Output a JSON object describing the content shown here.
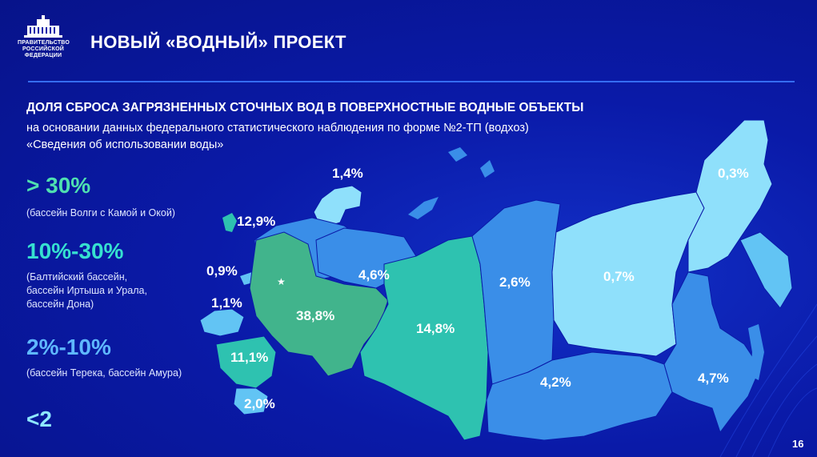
{
  "header": {
    "org_name": [
      "ПРАВИТЕЛЬСТВО",
      "РОССИЙСКОЙ",
      "ФЕДЕРАЦИИ"
    ],
    "title": "НОВЫЙ «ВОДНЫЙ» ПРОЕКТ"
  },
  "subtitle": "ДОЛЯ СБРОСА ЗАГРЯЗНЕННЫХ СТОЧНЫХ ВОД В ПОВЕРХНОСТНЫЕ ВОДНЫЕ ОБЪЕКТЫ",
  "description": [
    "на основании данных федерального статистического наблюдения по форме №2-ТП (водхоз)",
    "«Сведения об использовании воды»"
  ],
  "legend": [
    {
      "value": "> 30%",
      "note": [
        "(бассейн Волги с Камой и Окой)"
      ],
      "color": "#4fe0b0"
    },
    {
      "value": "10%-30%",
      "note": [
        "(Балтийский бассейн,",
        "бассейн Иртыша и Урала,",
        "бассейн Дона)"
      ],
      "color": "#36e0d0"
    },
    {
      "value": "2%-10%",
      "note": [
        "(бассейн Терека, бассейн Амура)"
      ],
      "color": "#5fb8ff"
    },
    {
      "value": "<2",
      "note": [],
      "color": "#8ee7ff"
    }
  ],
  "map_labels": {
    "barents": "1,4%",
    "novaya_zemlya": "12,9%",
    "baltic": "0,9%",
    "western": "1,1%",
    "volga": "38,8%",
    "northern": "4,6%",
    "don": "11,1%",
    "caspian": "2,0%",
    "irtysh": "14,8%",
    "yenisei": "2,6%",
    "lena": "0,7%",
    "chukotka": "0,3%",
    "baikal": "4,2%",
    "amur": "4,7%"
  },
  "colors": {
    "background": "#0a1aa8",
    "volga": "#41b48c",
    "green_teal": "#2ec2b0",
    "medium_blue": "#3a8ee8",
    "light_blue": "#62c4f4",
    "pale_cyan": "#8fe0fb",
    "rule": "#3d7dff"
  },
  "page_number": "16"
}
